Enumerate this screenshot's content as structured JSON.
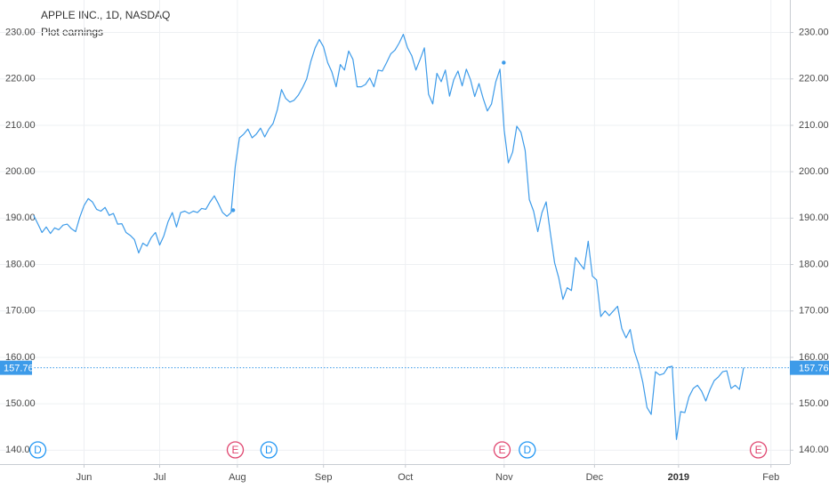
{
  "chart_data": {
    "type": "line",
    "title": "APPLE INC., 1D, NASDAQ",
    "subtitle": "Plot earnings",
    "series": [
      {
        "color": "#3d9be9",
        "values": [
          190.6,
          188.8,
          186.9,
          188.1,
          186.7,
          187.9,
          187.5,
          188.5,
          188.7,
          187.7,
          187.1,
          190.2,
          192.7,
          194.2,
          193.5,
          191.9,
          191.5,
          192.3,
          190.6,
          191.0,
          188.7,
          188.8,
          186.9,
          186.3,
          185.4,
          182.5,
          184.6,
          184.0,
          185.8,
          186.9,
          184.2,
          186.2,
          189.2,
          191.2,
          188.1,
          191.2,
          191.5,
          191.0,
          191.5,
          191.2,
          192.1,
          191.9,
          193.5,
          194.8,
          193.1,
          191.2,
          190.4,
          191.2,
          201.2,
          207.3,
          208.1,
          209.2,
          207.3,
          208.1,
          209.4,
          207.5,
          209.2,
          210.4,
          213.3,
          217.7,
          215.8,
          215.0,
          215.4,
          216.5,
          218.1,
          220.0,
          223.8,
          226.7,
          228.5,
          226.9,
          223.5,
          221.5,
          218.3,
          223.1,
          221.9,
          226.0,
          224.2,
          218.3,
          218.3,
          218.8,
          220.2,
          218.3,
          221.9,
          221.7,
          223.5,
          225.4,
          226.2,
          227.7,
          229.6,
          226.7,
          225.0,
          221.9,
          224.2,
          226.7,
          216.7,
          214.6,
          221.2,
          219.4,
          221.9,
          216.3,
          219.8,
          221.7,
          218.5,
          222.1,
          219.8,
          216.2,
          219.0,
          215.8,
          213.1,
          214.6,
          219.4,
          222.1,
          209.0,
          201.9,
          204.2,
          209.8,
          208.5,
          204.6,
          194.0,
          191.5,
          187.1,
          191.2,
          193.5,
          186.7,
          180.4,
          177.1,
          172.5,
          175.0,
          174.4,
          181.5,
          180.2,
          179.0,
          185.0,
          177.5,
          176.7,
          168.8,
          170.0,
          169.0,
          170.0,
          171.0,
          166.2,
          164.2,
          166.0,
          161.3,
          158.5,
          154.6,
          149.2,
          147.7,
          156.9,
          156.2,
          156.5,
          157.9,
          158.1,
          142.3,
          148.3,
          148.1,
          151.5,
          153.3,
          154.0,
          152.7,
          150.6,
          153.1,
          155.0,
          155.8,
          156.9,
          157.1,
          153.3,
          154.0,
          153.1,
          157.76
        ]
      }
    ],
    "xlim": [
      -8,
      180
    ],
    "xticks": [
      {
        "value": 12,
        "label": "Jun"
      },
      {
        "value": 30,
        "label": "Jul"
      },
      {
        "value": 48.5,
        "label": "Aug"
      },
      {
        "value": 69,
        "label": "Sep"
      },
      {
        "value": 88.5,
        "label": "Oct"
      },
      {
        "value": 112,
        "label": "Nov"
      },
      {
        "value": 133.5,
        "label": "Dec"
      },
      {
        "value": 153.5,
        "label": "2019"
      },
      {
        "value": 175.5,
        "label": "Feb"
      }
    ],
    "ylim": [
      137,
      237
    ],
    "yticks": [
      {
        "value": 140,
        "label": "140.00"
      },
      {
        "value": 150,
        "label": "150.00"
      },
      {
        "value": 160,
        "label": "160.00"
      },
      {
        "value": 170,
        "label": "170.00"
      },
      {
        "value": 180,
        "label": "180.00"
      },
      {
        "value": 190,
        "label": "190.00"
      },
      {
        "value": 200,
        "label": "200.00"
      },
      {
        "value": 210,
        "label": "210.00"
      },
      {
        "value": 220,
        "label": "220.00"
      },
      {
        "value": 230,
        "label": "230.00"
      }
    ],
    "grid": true,
    "earnings_points": [
      {
        "x": 47.5,
        "value": 191.7
      },
      {
        "x": 111.9,
        "value": 223.5
      }
    ],
    "events": [
      {
        "x": 1,
        "label": "D",
        "color": "#2196f3"
      },
      {
        "x": 48,
        "label": "E",
        "color": "#e0456f"
      },
      {
        "x": 56,
        "label": "D",
        "color": "#2196f3"
      },
      {
        "x": 111.5,
        "label": "E",
        "color": "#e0456f"
      },
      {
        "x": 117.5,
        "label": "D",
        "color": "#2196f3"
      },
      {
        "x": 172.5,
        "label": "E",
        "color": "#e0456f"
      }
    ]
  }
}
